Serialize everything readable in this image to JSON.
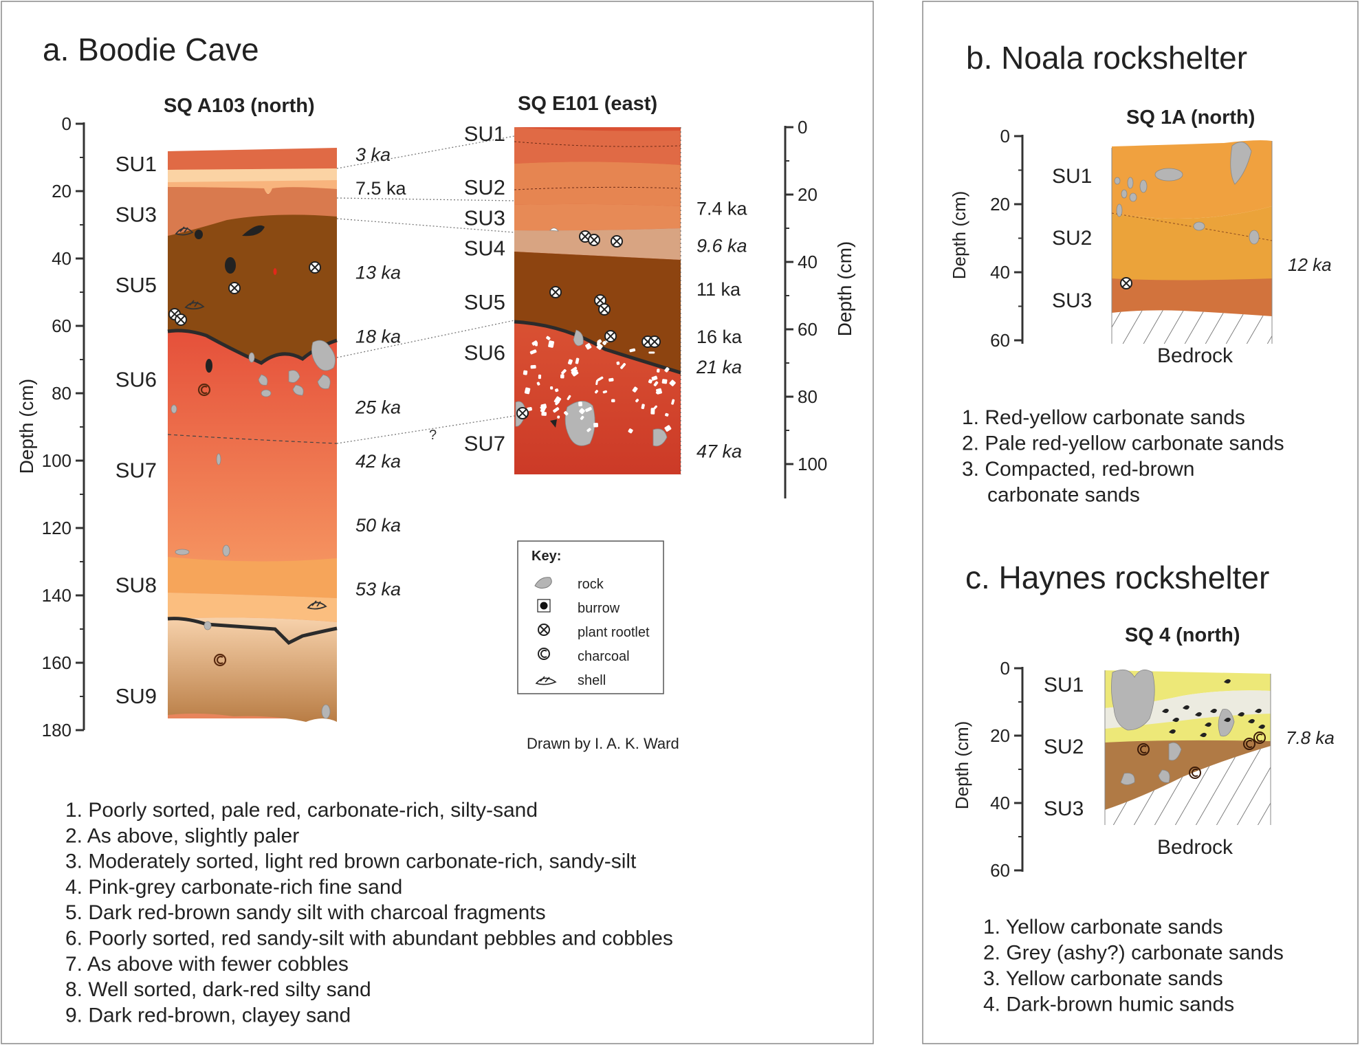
{
  "panels": {
    "a": {
      "title": "a. Boodie Cave",
      "profile_north": {
        "title": "SQ A103 (north)",
        "axis_label": "Depth (cm)",
        "ticks": [
          "0",
          "20",
          "40",
          "60",
          "80",
          "100",
          "120",
          "140",
          "160",
          "180"
        ],
        "units": [
          {
            "label": "SU1",
            "depth": 12
          },
          {
            "label": "SU3",
            "depth": 27
          },
          {
            "label": "SU5",
            "depth": 48
          },
          {
            "label": "SU6",
            "depth": 76
          },
          {
            "label": "SU7",
            "depth": 103
          },
          {
            "label": "SU8",
            "depth": 137
          },
          {
            "label": "SU9",
            "depth": 170
          }
        ],
        "ages": [
          {
            "label": "3 ka",
            "depth": 9,
            "italic": true
          },
          {
            "label": "7.5 ka",
            "depth": 19,
            "italic": false
          },
          {
            "label": "13 ka",
            "depth": 44,
            "italic": true
          },
          {
            "label": "18 ka",
            "depth": 63,
            "italic": true
          },
          {
            "label": "25 ka",
            "depth": 84,
            "italic": true
          },
          {
            "label": "42 ka",
            "depth": 100,
            "italic": true
          },
          {
            "label": "50 ka",
            "depth": 119,
            "italic": true
          },
          {
            "label": "53 ka",
            "depth": 138,
            "italic": true
          }
        ]
      },
      "profile_east": {
        "title": "SQ E101 (east)",
        "axis_label": "Depth (cm)",
        "ticks": [
          "0",
          "20",
          "40",
          "60",
          "80",
          "100"
        ],
        "units": [
          {
            "label": "SU1",
            "depth": 2
          },
          {
            "label": "SU2",
            "depth": 18
          },
          {
            "label": "SU3",
            "depth": 27
          },
          {
            "label": "SU4",
            "depth": 36
          },
          {
            "label": "SU5",
            "depth": 52
          },
          {
            "label": "SU6",
            "depth": 67
          },
          {
            "label": "SU7",
            "depth": 94
          }
        ],
        "ages": [
          {
            "label": "7.4 ka",
            "depth": 24,
            "italic": false
          },
          {
            "label": "9.6 ka",
            "depth": 35,
            "italic": true
          },
          {
            "label": "11 ka",
            "depth": 48,
            "italic": false
          },
          {
            "label": "16 ka",
            "depth": 62,
            "italic": false
          },
          {
            "label": "21 ka",
            "depth": 71,
            "italic": true
          },
          {
            "label": "47 ka",
            "depth": 96,
            "italic": true
          }
        ],
        "unknown_mark": "?"
      },
      "key": {
        "title": "Key:",
        "items": [
          {
            "label": "rock",
            "icon": "rock-icon"
          },
          {
            "label": "burrow",
            "icon": "burrow-icon"
          },
          {
            "label": "plant rootlet",
            "icon": "plant-rootlet-icon"
          },
          {
            "label": "charcoal",
            "icon": "charcoal-icon"
          },
          {
            "label": "shell",
            "icon": "shell-icon"
          }
        ]
      },
      "credit": "Drawn by I. A. K. Ward",
      "descriptions": [
        "1. Poorly sorted, pale red, carbonate-rich, silty-sand",
        "2. As above, slightly paler",
        "3. Moderately sorted, light red brown carbonate-rich, sandy-silt",
        "4. Pink-grey carbonate-rich fine sand",
        "5. Dark red-brown sandy silt with charcoal fragments",
        "6. Poorly sorted, red sandy-silt with abundant pebbles and cobbles",
        "7. As above with fewer cobbles",
        "8. Well sorted, dark-red silty sand",
        "9. Dark red-brown, clayey sand"
      ]
    },
    "b": {
      "title": "b. Noala rockshelter",
      "profile": {
        "title": "SQ 1A (north)",
        "axis_label": "Depth (cm)",
        "ticks": [
          "0",
          "20",
          "40",
          "60"
        ],
        "units": [
          "SU1",
          "SU2",
          "SU3"
        ],
        "age": "12 ka",
        "base_label": "Bedrock"
      },
      "descriptions": [
        "1. Red-yellow carbonate sands",
        "2. Pale red-yellow carbonate sands",
        "3. Compacted, red-brown",
        "carbonate sands"
      ]
    },
    "c": {
      "title": "c. Haynes rockshelter",
      "profile": {
        "title": "SQ 4 (north)",
        "axis_label": "Depth (cm)",
        "ticks": [
          "0",
          "20",
          "40",
          "60"
        ],
        "units": [
          "SU1",
          "SU2",
          "SU3"
        ],
        "age": "7.8 ka",
        "base_label": "Bedrock"
      },
      "descriptions": [
        "1. Yellow carbonate sands",
        "2. Grey (ashy?) carbonate sands",
        "3. Yellow carbonate sands",
        "4. Dark-brown humic sands"
      ]
    }
  },
  "colors": {
    "su1": "#e06a45",
    "su2": "#fbd3a4",
    "su3": "#d97a4e",
    "su5": "#8a4a12",
    "su6": "#e5503a",
    "su7": "#f08c55",
    "su8": "#f6a55a",
    "su9_top": "#f5c9a1",
    "su9_bottom": "#c58952",
    "rock": "#b5b5b5",
    "noala_su1": "#f0a13f",
    "noala_su2": "#e9a33a",
    "noala_su3": "#d2733d",
    "haynes_yellow": "#ede878",
    "haynes_grey": "#ecebe0",
    "haynes_brown": "#b07a45"
  }
}
